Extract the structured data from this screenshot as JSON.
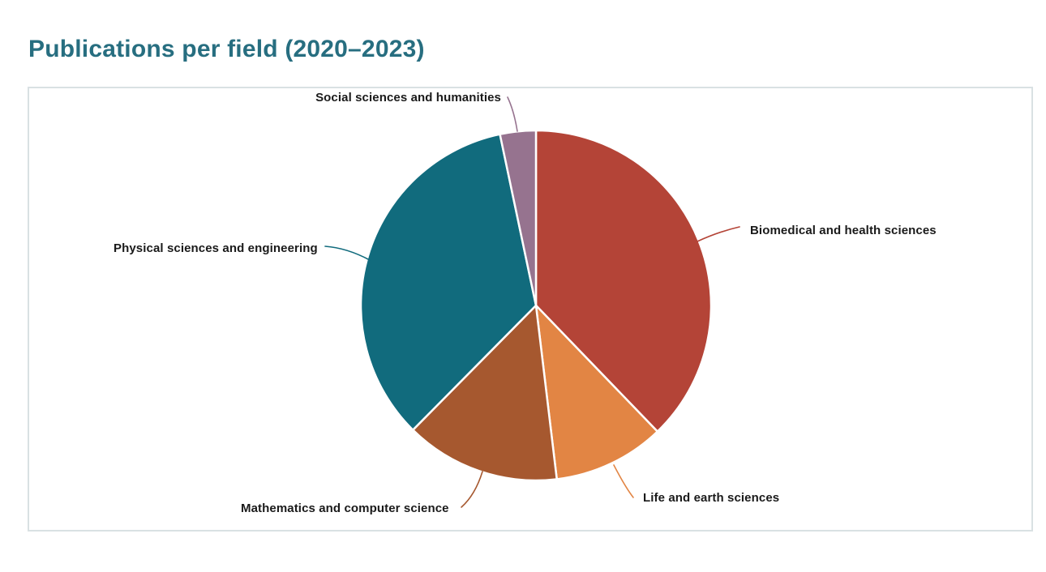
{
  "page": {
    "title": "Publications per field (2020–2023)"
  },
  "colors": {
    "title": "#276E80",
    "panel_border": "#D9E1E3",
    "label_text": "#1A1A1A",
    "slice_divider": "#FFFFFF",
    "background": "#FFFFFF"
  },
  "chart_data": {
    "type": "pie",
    "title": "Publications per field (2020–2023)",
    "direction": "clockwise",
    "start_angle_deg": 0,
    "legend_position": "outside labels with leader lines",
    "slices": [
      {
        "label": "Biomedical and health sciences",
        "value_pct": 37.8,
        "color": "#B44437"
      },
      {
        "label": "Life and earth sciences",
        "value_pct": 10.3,
        "color": "#E28544"
      },
      {
        "label": "Mathematics and computer science",
        "value_pct": 14.3,
        "color": "#A6582F"
      },
      {
        "label": "Physical sciences and engineering",
        "value_pct": 34.3,
        "color": "#116B7D"
      },
      {
        "label": "Social sciences and humanities",
        "value_pct": 3.3,
        "color": "#96738F"
      }
    ]
  }
}
